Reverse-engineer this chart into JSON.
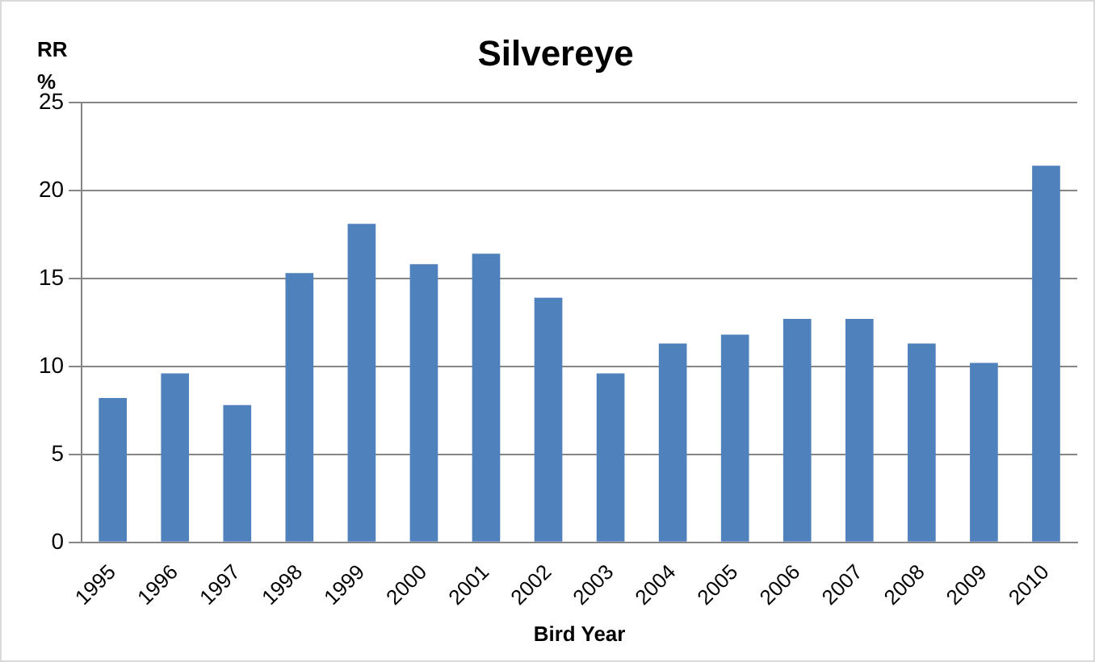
{
  "chart_data": {
    "type": "bar",
    "title": "Silvereye",
    "xlabel": "Bird Year",
    "ylabel": "RR %",
    "categories": [
      "1995",
      "1996",
      "1997",
      "1998",
      "1999",
      "2000",
      "2001",
      "2002",
      "2003",
      "2004",
      "2005",
      "2006",
      "2007",
      "2008",
      "2009",
      "2010"
    ],
    "values": [
      8.2,
      9.6,
      7.8,
      15.3,
      18.1,
      15.8,
      16.4,
      13.9,
      9.6,
      11.3,
      11.8,
      12.7,
      12.7,
      11.3,
      10.2,
      21.4
    ],
    "color": "#4f81bd",
    "ylim": [
      0,
      25
    ],
    "yticks": [
      0,
      5,
      10,
      15,
      20,
      25
    ],
    "grid": "y",
    "legend": false
  }
}
